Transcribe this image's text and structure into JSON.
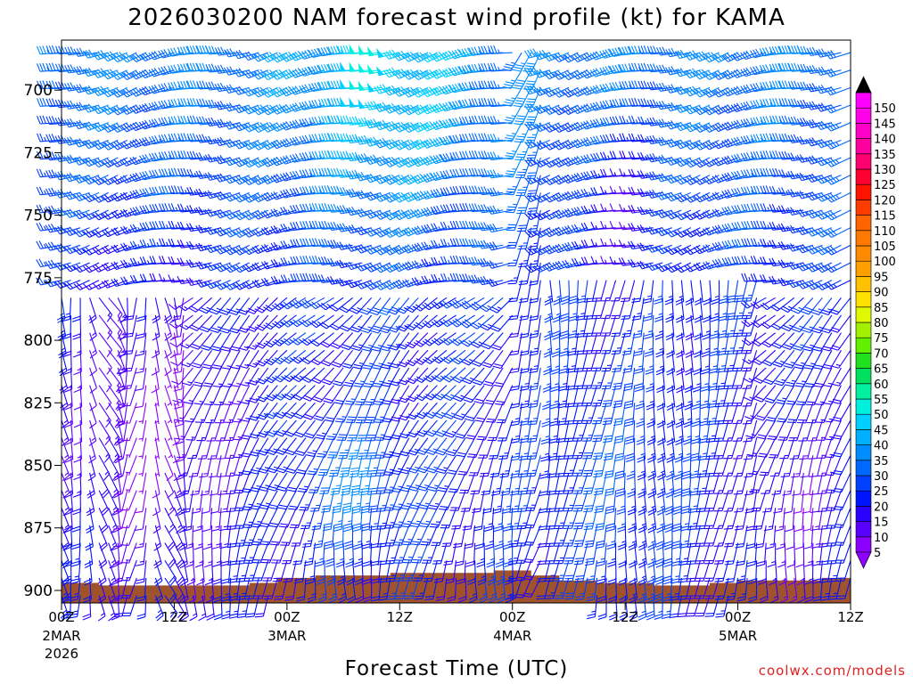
{
  "chart_data": {
    "type": "wind-barb time-height",
    "title": "2026030200 NAM forecast wind profile (kt) for KAMA",
    "xlabel": "Forecast Time (UTC)",
    "ylabel": "",
    "credit": "coolwx.com/models",
    "y_axis": {
      "unit": "hPa",
      "range": [
        905,
        680
      ],
      "ticks": [
        "700",
        "725",
        "750",
        "775",
        "800",
        "825",
        "850",
        "875",
        "900"
      ]
    },
    "x_axis": {
      "range_hours": [
        0,
        84
      ],
      "ticks": [
        {
          "hour": 0,
          "label": "00Z",
          "sub1": "2MAR",
          "sub2": "2026"
        },
        {
          "hour": 12,
          "label": "12Z",
          "sub1": "",
          "sub2": ""
        },
        {
          "hour": 24,
          "label": "00Z",
          "sub1": "3MAR",
          "sub2": ""
        },
        {
          "hour": 36,
          "label": "12Z",
          "sub1": "",
          "sub2": ""
        },
        {
          "hour": 48,
          "label": "00Z",
          "sub1": "4MAR",
          "sub2": ""
        },
        {
          "hour": 60,
          "label": "12Z",
          "sub1": "",
          "sub2": ""
        },
        {
          "hour": 72,
          "label": "00Z",
          "sub1": "5MAR",
          "sub2": ""
        },
        {
          "hour": 84,
          "label": "12Z",
          "sub1": "",
          "sub2": ""
        }
      ]
    },
    "colorbar": {
      "levels": [
        "5",
        "10",
        "15",
        "20",
        "25",
        "30",
        "35",
        "40",
        "45",
        "50",
        "55",
        "60",
        "65",
        "70",
        "75",
        "80",
        "85",
        "90",
        "95",
        "100",
        "105",
        "110",
        "115",
        "120",
        "125",
        "130",
        "135",
        "140",
        "145",
        "150"
      ],
      "colors": [
        "#8c00ff",
        "#5a00ff",
        "#2a00ff",
        "#0014ff",
        "#0040ff",
        "#0068ff",
        "#008cff",
        "#00b0ff",
        "#00d0ff",
        "#00f0e0",
        "#00f0a0",
        "#00e060",
        "#20e020",
        "#60f000",
        "#a0f000",
        "#e0f800",
        "#ffe000",
        "#ffc000",
        "#ffa000",
        "#ff8c00",
        "#ff7800",
        "#ff6400",
        "#ff3c00",
        "#ff1400",
        "#ff0030",
        "#ff0070",
        "#ff00a0",
        "#ff00c8",
        "#ff00e8",
        "#ff00ff"
      ],
      "min_color": "#8c00ff",
      "max_color": "#000000"
    },
    "terrain": {
      "color": "#a0522d",
      "surface_pressure": [
        {
          "hour": 0,
          "hPa": 897
        },
        {
          "hour": 4,
          "hPa": 898
        },
        {
          "hour": 9,
          "hPa": 898
        },
        {
          "hour": 14,
          "hPa": 898
        },
        {
          "hour": 17,
          "hPa": 898
        },
        {
          "hour": 20,
          "hPa": 897
        },
        {
          "hour": 23,
          "hPa": 895
        },
        {
          "hour": 27,
          "hPa": 894
        },
        {
          "hour": 30,
          "hPa": 894
        },
        {
          "hour": 35,
          "hPa": 893
        },
        {
          "hour": 38,
          "hPa": 893
        },
        {
          "hour": 42,
          "hPa": 893
        },
        {
          "hour": 46,
          "hPa": 892
        },
        {
          "hour": 48,
          "hPa": 892
        },
        {
          "hour": 50,
          "hPa": 894
        },
        {
          "hour": 53,
          "hPa": 896
        },
        {
          "hour": 57,
          "hPa": 897
        },
        {
          "hour": 60,
          "hPa": 897
        },
        {
          "hour": 63,
          "hPa": 898
        },
        {
          "hour": 66,
          "hPa": 898
        },
        {
          "hour": 69,
          "hPa": 897
        },
        {
          "hour": 72,
          "hPa": 896
        },
        {
          "hour": 75,
          "hPa": 896
        },
        {
          "hour": 78,
          "hPa": 896
        },
        {
          "hour": 81,
          "hPa": 895
        },
        {
          "hour": 84,
          "hPa": 895
        }
      ]
    },
    "barb_grid": {
      "hour_step": 1,
      "hpa_levels": [
        685,
        692,
        699,
        706,
        713,
        720,
        727,
        734,
        741,
        748,
        755,
        762,
        769,
        776,
        783,
        790,
        797,
        804,
        811,
        818,
        825,
        832,
        839,
        846,
        853,
        860,
        867,
        874,
        881,
        888,
        895,
        902
      ]
    }
  }
}
